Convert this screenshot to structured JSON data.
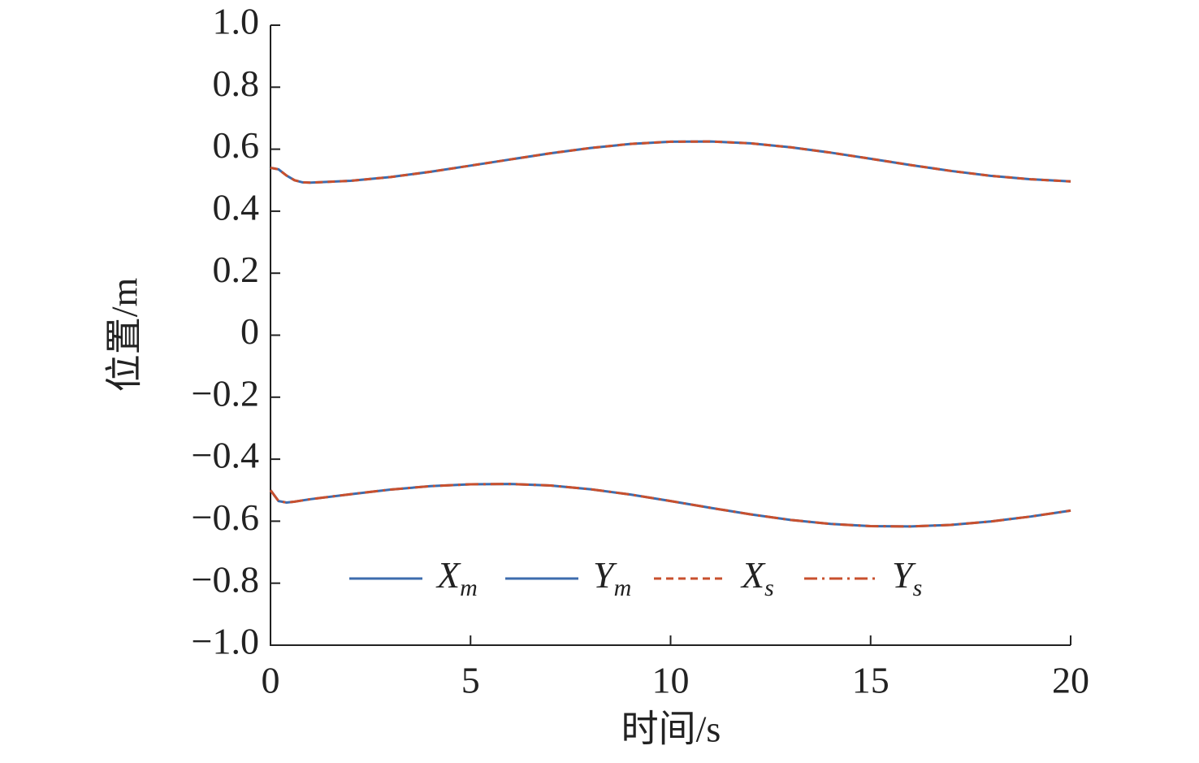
{
  "chart_data": {
    "type": "line",
    "xlabel": "时间/s",
    "ylabel": "位置/m",
    "xlim": [
      0,
      20
    ],
    "xticks": [
      0,
      5,
      10,
      15,
      20
    ],
    "ylim": [
      -1,
      1
    ],
    "yticks": [
      {
        "value": -1,
        "label": "−1.0"
      },
      {
        "value": -0.8,
        "label": "−0.8"
      },
      {
        "value": -0.6,
        "label": "−0.6"
      },
      {
        "value": -0.4,
        "label": "−0.4"
      },
      {
        "value": -0.2,
        "label": "−0.2"
      },
      0,
      0.2,
      0.4,
      0.6,
      0.8,
      {
        "value": 1,
        "label": "1.0"
      }
    ],
    "legend": "lower center",
    "x": [
      0,
      0.2,
      0.4,
      0.6,
      0.8,
      1,
      2,
      3,
      4,
      5,
      6,
      7,
      8,
      9,
      10,
      11,
      12,
      13,
      14,
      15,
      16,
      17,
      18,
      19,
      20
    ],
    "series": [
      {
        "name": "Xm",
        "color": "#3d6cad",
        "dash": "solid",
        "values": [
          0.54,
          0.535,
          0.515,
          0.5,
          0.493,
          0.492,
          0.498,
          0.51,
          0.527,
          0.547,
          0.567,
          0.587,
          0.604,
          0.617,
          0.624,
          0.625,
          0.619,
          0.606,
          0.589,
          0.569,
          0.549,
          0.53,
          0.514,
          0.503,
          0.496
        ]
      },
      {
        "name": "Ym",
        "color": "#3d6cad",
        "dash": "solid",
        "values": [
          -0.5,
          -0.535,
          -0.54,
          -0.537,
          -0.533,
          -0.529,
          -0.513,
          -0.498,
          -0.487,
          -0.481,
          -0.48,
          -0.485,
          -0.497,
          -0.514,
          -0.535,
          -0.557,
          -0.578,
          -0.596,
          -0.609,
          -0.616,
          -0.617,
          -0.612,
          -0.601,
          -0.585,
          -0.566
        ]
      },
      {
        "name": "Xs",
        "color": "#c8502e",
        "dash": "dashed",
        "values": [
          0.54,
          0.535,
          0.515,
          0.5,
          0.493,
          0.492,
          0.498,
          0.51,
          0.527,
          0.547,
          0.567,
          0.587,
          0.604,
          0.617,
          0.624,
          0.625,
          0.619,
          0.606,
          0.589,
          0.569,
          0.549,
          0.53,
          0.514,
          0.503,
          0.496
        ]
      },
      {
        "name": "Ys",
        "color": "#c8502e",
        "dash": "dashdot",
        "values": [
          -0.5,
          -0.535,
          -0.54,
          -0.537,
          -0.533,
          -0.529,
          -0.513,
          -0.498,
          -0.487,
          -0.481,
          -0.48,
          -0.485,
          -0.497,
          -0.514,
          -0.535,
          -0.557,
          -0.578,
          -0.596,
          -0.609,
          -0.616,
          -0.617,
          -0.612,
          -0.601,
          -0.585,
          -0.566
        ]
      }
    ]
  }
}
